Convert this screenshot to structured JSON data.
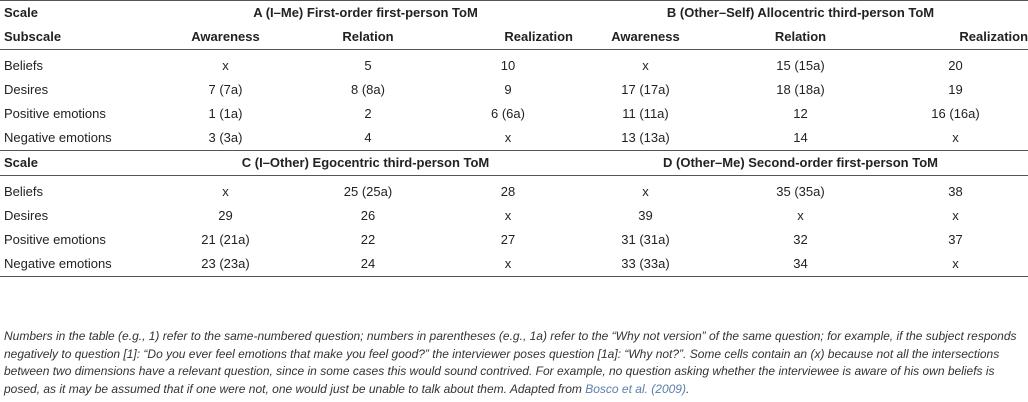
{
  "panel_ab": {
    "header": [
      "Scale",
      "A (I–Me) First-order first-person ToM",
      "B (Other–Self) Allocentric third-person ToM"
    ],
    "subheader": [
      "Subscale",
      "Awareness",
      "Relation",
      "Realization",
      "Awareness",
      "Relation",
      "Realization"
    ],
    "rows": [
      [
        "Beliefs",
        "x",
        "5",
        "10",
        "x",
        "15 (15a)",
        "20"
      ],
      [
        "Desires",
        "7 (7a)",
        "8 (8a)",
        "9",
        "17 (17a)",
        "18 (18a)",
        "19"
      ],
      [
        "Positive emotions",
        "1 (1a)",
        "2",
        "6 (6a)",
        "11 (11a)",
        "12",
        "16 (16a)"
      ],
      [
        "Negative emotions",
        "3 (3a)",
        "4",
        "x",
        "13 (13a)",
        "14",
        "x"
      ]
    ]
  },
  "panel_cd": {
    "header": [
      "Scale",
      "C (I–Other) Egocentric third-person ToM",
      "D (Other–Me) Second-order first-person ToM"
    ],
    "rows": [
      [
        "Beliefs",
        "x",
        "25 (25a)",
        "28",
        "x",
        "35 (35a)",
        "38"
      ],
      [
        "Desires",
        "29",
        "26",
        "x",
        "39",
        "x",
        "x"
      ],
      [
        "Positive emotions",
        "21 (21a)",
        "22",
        "27",
        "31 (31a)",
        "32",
        "37"
      ],
      [
        "Negative emotions",
        "23 (23a)",
        "24",
        "x",
        "33 (33a)",
        "34",
        "x"
      ]
    ]
  },
  "footnote": {
    "text": "Numbers in the table (e.g., 1) refer to the same-numbered question; numbers in parentheses (e.g., 1a) refer to the “Why not version” of the same question; for example, if the subject responds negatively to question [1]: “Do you ever feel emotions that make you feel good?” the interviewer poses question [1a]: “Why not?”. Some cells contain an (x) because not all the intersections between two dimensions have a relevant question, since in some cases this would sound contrived. For example, no question asking whether the interviewee is aware of his own beliefs is posed, as it may be assumed that if one were not, one would just be unable to talk about them. Adapted from ",
    "ref": "Bosco et al. (2009)",
    "end": "."
  },
  "colors": {
    "rule": "#555555",
    "reference_link": "#5a7fa8"
  }
}
